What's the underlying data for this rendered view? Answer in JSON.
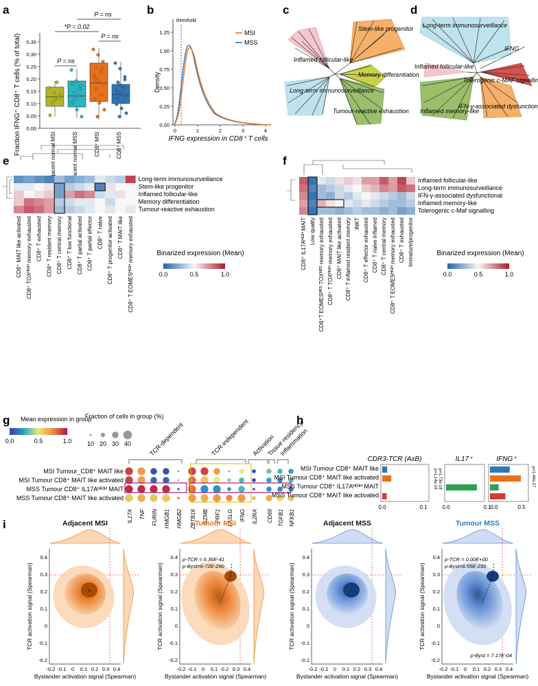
{
  "panels": {
    "a": {
      "label": "a",
      "ylabel": "Fraction IFNG⁺ CD8⁺ T cells (% of total)",
      "categories": [
        "CD8⁺ adjacent normal MSI",
        "CD8⁺ adjacent normal MSS",
        "CD8⁺ MSI",
        "CD8⁺ MSS"
      ],
      "comparisons": [
        "P = ns",
        "*P = 0.02",
        "P = ns",
        "P = ns"
      ],
      "yticks": [
        "0.00",
        "0.05",
        "0.10",
        "0.15",
        "0.20",
        "0.25",
        "0.30",
        "0.35"
      ]
    },
    "b": {
      "label": "b",
      "threshold": "threshold",
      "xlabel": "IFNG expression in CD8⁺ T cells",
      "ylabel": "Density",
      "legend": [
        "MSI",
        "MSS"
      ],
      "yticks": [
        "0.00",
        "0.25",
        "0.50",
        "0.75",
        "1.00",
        "1.25"
      ],
      "xticks": [
        "0",
        "1",
        "2",
        "3",
        "4"
      ]
    },
    "c": {
      "label": "c",
      "clusters": [
        "Inflamed follicular-like",
        "Stem-like progenitor",
        "Memory differentiation",
        "Long-term immunosurveillance",
        "Tumour-reactive exhaustion"
      ]
    },
    "d": {
      "label": "d",
      "gene": "IFNG",
      "clusters": [
        "Long-term immunosurveillance",
        "Inflamed follicular-like",
        "Tolerogenic c-MAF signalling",
        "Inflamed memory-like",
        "IFN-γ-associated dysfunctional"
      ]
    },
    "e": {
      "label": "e",
      "rows": [
        "Long-term immunosurveillance",
        "Stem-like progenitor",
        "Inflamed follicular-like",
        "Memory differentiation",
        "Tumour-reactive exhaustion"
      ],
      "cols": [
        "CD8⁺ MAIT like activated",
        "CD8⁺ TOXᴴᴵᴳᴴ memory exhausted",
        "CD8⁺ T exhausted",
        "CD8⁺ T resident memory",
        "CD8⁺ T central memory",
        "CD8⁺ T low functional",
        "CD8⁺ T partial activated",
        "CD8⁺ T partial effector",
        "CD8⁺ T naive",
        "CD8⁺ T progenitor activated",
        "CD8⁺ T MAIT like",
        "CD8⁺ T EOMESᴴᴵᴳᴴ memory exhausted"
      ],
      "legend_title": "Binarized expression (Mean)",
      "legend_ticks": [
        "0.0",
        "0.5",
        "1.0"
      ]
    },
    "f": {
      "label": "f",
      "rows": [
        "Inflamed follicular-like",
        "Long-term immunosurveillance",
        "IFN-γ-associated dysfunctional",
        "Inflamed memory-like",
        "Tolerogenic c-Maf signalling"
      ],
      "cols": [
        "CD8⁺ IL17Aᴴᴵᴳᴴ MAIT",
        "Low quality",
        "CD8⁺T EOMESᴹᴱᴰ TOXᴹᴱᴰ memory exhausted",
        "CD8⁺ T TOXᴴᴵᴳᴴ memory exhausted",
        "CD8⁺ MAIT like activated",
        "CD8⁺ T inflamed resident memory",
        "iNKT",
        "CD8⁺ T effector exhausted",
        "CD8⁺ T naive inflamed",
        "CD8⁺ T central memory",
        "CD8⁺ T EOMESᴴᴵᴳᴴ memory exhausted",
        "CD8⁺ T exhausted",
        "Immature/progenitor"
      ],
      "legend_title": "Binarized expression (Mean)",
      "legend_ticks": [
        "0.0",
        "0.5",
        "1.0"
      ]
    },
    "g": {
      "label": "g",
      "legend_title": "Mean expression in group",
      "legend_ticks": [
        "0.0",
        "0.5",
        "1.0"
      ],
      "size_title": "Fraction of cells in group (%)",
      "size_ticks": [
        "10",
        "20",
        "30",
        "40"
      ],
      "groups": [
        "TCR-dependent",
        "TCR-independent",
        "Activation",
        "Tissue residency",
        "Inflammation"
      ],
      "rows": [
        "MSI Tumour_CD8⁺ MAIT like",
        "MSI Tumour CD8⁺ MAIT like activated",
        "MSS Tumour CD8⁺ IL17Aᴴᴵᴳᴴ MAIT",
        "MSS Tumour CD8⁺ MAIT like activated"
      ],
      "genes": [
        "IL17A",
        "TNF",
        "FURIN",
        "HMGB1",
        "HMGB2",
        "ZBTB16",
        "GZMB",
        "PRF1",
        "FASLG",
        "IFNG",
        "IL2RA",
        "CD69",
        "TGFB1",
        "NFKB1"
      ]
    },
    "h": {
      "label": "h",
      "titles": [
        "CDR3-TCR (AxB)",
        "IL17⁺",
        "IFNG⁺"
      ],
      "rows": [
        "MSI Tumour CD8⁺ MAIT like",
        "MSI Tumour CD8⁺ MAIT like activated",
        "MSS Tumour CD8⁺ IL17Aᴴᴵᴳᴴ MAIT",
        "MSS Tumour CD8⁺ MAIT like activated"
      ],
      "pvals": [
        "p=1.14e-18",
        "p=1.73e-18",
        "p=1.44e-27"
      ],
      "xticks1": [
        "0.0",
        "0.1"
      ],
      "xticks2": [
        "0.0",
        "0.1"
      ],
      "xticks3": [
        "0.0",
        "0.5"
      ]
    },
    "i": {
      "label": "i",
      "titles": [
        "Adjacent MSI",
        "Tumour MSI",
        "Adjacent MSS",
        "Tumour MSS"
      ],
      "ylabel": "TCR activation signal (Spearman)",
      "xlabel": "Bystander activation signal (Spearman)",
      "yticks": [
        "-0.2",
        "-0.1",
        "0",
        "0.1",
        "0.2",
        "0.3",
        "0.4"
      ],
      "xticks": [
        "-0.2",
        "-0.1",
        "0",
        "0.1",
        "0.2",
        "0.3",
        "0.4"
      ],
      "annot_msi": [
        "p-TCR = 6.36E-41",
        "p-Byst=6-72E-290"
      ],
      "annot_mss": [
        "p-TCR = 0.00E+00",
        "p-Byst=6.55E-230",
        "p-Byst = 7.17E-04"
      ]
    }
  },
  "colors": {
    "msi": "#e8721c",
    "mss": "#2f77b8",
    "olive": "#b5b52a",
    "teal": "#2ab5c2",
    "green": "#2fa050",
    "red": "#d23b3b"
  }
}
